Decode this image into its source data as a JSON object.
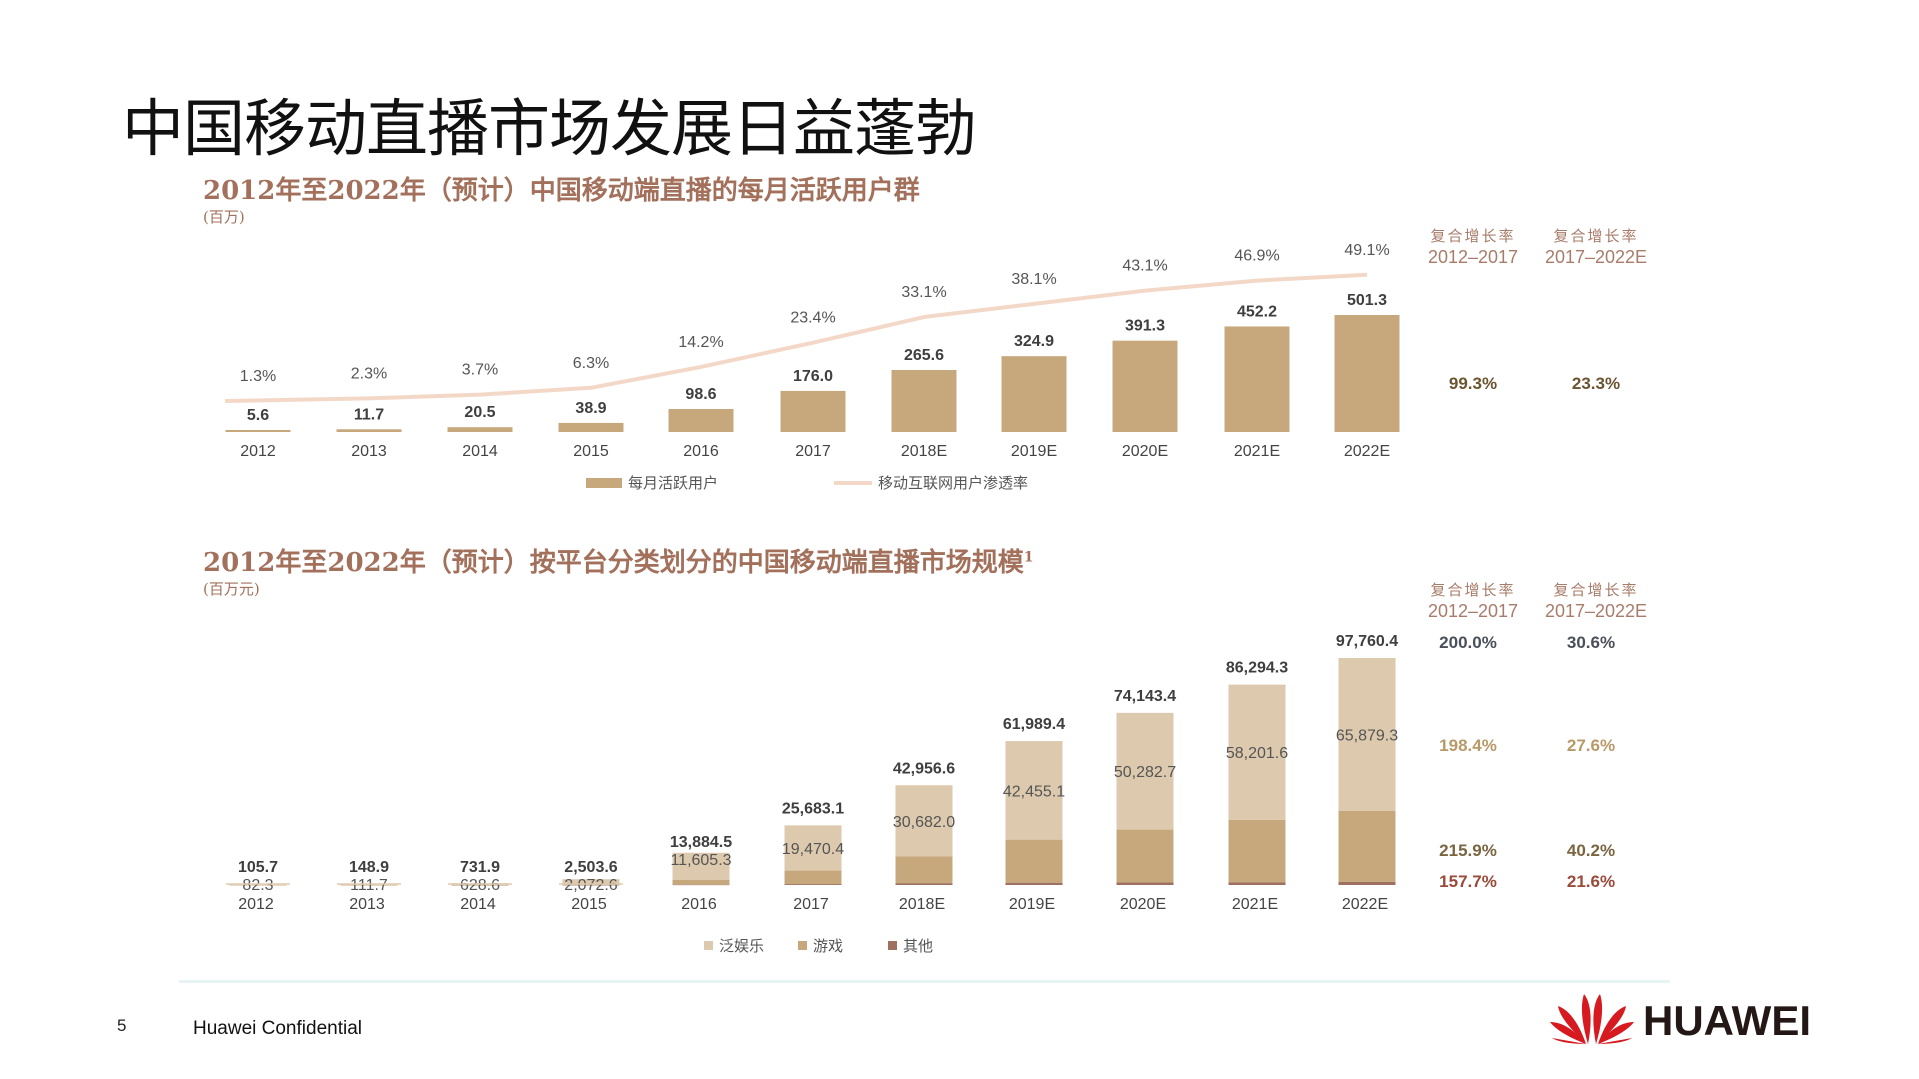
{
  "title": "中国移动直播市场发展日益蓬勃",
  "footer": {
    "page_number": "5",
    "confidential": "Huawei Confidential",
    "logo_text": "HUAWEI"
  },
  "colors": {
    "title": "#a3705c",
    "bar_users": "#c6a87c",
    "penetration_line": "#f3d8c8",
    "entertainment": "#ddc9ad",
    "games": "#c6a87c",
    "other": "#9e7060"
  },
  "chart_data": [
    {
      "type": "bar",
      "title": "2012年至2022年（预计）中国移动端直播的每月活跃用户群",
      "unit": "(百万)",
      "categories": [
        "2012",
        "2013",
        "2014",
        "2015",
        "2016",
        "2017",
        "2018E",
        "2019E",
        "2020E",
        "2021E",
        "2022E"
      ],
      "series": [
        {
          "name": "每月活跃用户",
          "type": "bar",
          "values": [
            5.6,
            11.7,
            20.5,
            38.9,
            98.6,
            176.0,
            265.6,
            324.9,
            391.3,
            452.2,
            501.3
          ],
          "labels": [
            "5.6",
            "11.7",
            "20.5",
            "38.9",
            "98.6",
            "176.0",
            "265.6",
            "324.9",
            "391.3",
            "452.2",
            "501.3"
          ]
        },
        {
          "name": "移动互联网用户渗透率",
          "type": "line",
          "values": [
            1.3,
            2.3,
            3.7,
            6.3,
            14.2,
            23.4,
            33.1,
            38.1,
            43.1,
            46.9,
            49.1
          ],
          "labels": [
            "1.3%",
            "2.3%",
            "3.7%",
            "6.3%",
            "14.2%",
            "23.4%",
            "33.1%",
            "38.1%",
            "43.1%",
            "46.9%",
            "49.1%"
          ]
        }
      ],
      "legend": "bottom",
      "cagr": {
        "headers": [
          {
            "label": "复合增长率",
            "period": "2012–2017"
          },
          {
            "label": "复合增长率",
            "period": "2017–2022E"
          }
        ],
        "rows": [
          {
            "values": [
              "99.3%",
              "23.3%"
            ],
            "color": "#6b5430"
          }
        ]
      }
    },
    {
      "type": "bar",
      "stacked": true,
      "title": "2012年至2022年（预计）按平台分类划分的中国移动端直播市场规模",
      "title_superscript": "1",
      "unit": "(百万元)",
      "categories": [
        "2012",
        "2013",
        "2014",
        "2015",
        "2016",
        "2017",
        "2018E",
        "2019E",
        "2020E",
        "2021E",
        "2022E"
      ],
      "totals": [
        105.7,
        148.9,
        731.9,
        2503.6,
        13884.5,
        25683.1,
        42956.6,
        61989.4,
        74143.4,
        86294.3,
        97760.4
      ],
      "total_labels": [
        "105.7",
        "148.9",
        "731.9",
        "2,503.6",
        "13,884.5",
        "25,683.1",
        "42,956.6",
        "61,989.4",
        "74,143.4",
        "86,294.3",
        "97,760.4"
      ],
      "series": [
        {
          "name": "其他",
          "values": [
            2,
            3,
            10,
            40,
            150,
            400,
            800,
            1000,
            1100,
            1200,
            1400
          ]
        },
        {
          "name": "游戏",
          "values": [
            21.4,
            34.2,
            93.3,
            391,
            2129.2,
            5812.7,
            11474.6,
            18534.3,
            22760.7,
            26892.7,
            30481.1
          ]
        },
        {
          "name": "泛娱乐",
          "values": [
            82.3,
            111.7,
            628.6,
            2072.6,
            11605.3,
            19470.4,
            30682.0,
            42455.1,
            50282.7,
            58201.6,
            65879.3
          ],
          "labels": [
            "82.3",
            "111.7",
            "628.6",
            "2,072.6",
            "11,605.3",
            "19,470.4",
            "30,682.0",
            "42,455.1",
            "50,282.7",
            "58,201.6",
            "65,879.3"
          ]
        }
      ],
      "legend": "bottom",
      "cagr": {
        "headers": [
          {
            "label": "复合增长率",
            "period": "2012–2017"
          },
          {
            "label": "复合增长率",
            "period": "2017–2022E"
          }
        ],
        "rows": [
          {
            "values": [
              "200.0%",
              "30.6%"
            ],
            "color": "#4a4f5a"
          },
          {
            "values": [
              "198.4%",
              "27.6%"
            ],
            "color": "#b89968"
          },
          {
            "values": [
              "215.9%",
              "40.2%"
            ],
            "color": "#7a6540"
          },
          {
            "values": [
              "157.7%",
              "21.6%"
            ],
            "color": "#9a4a3a"
          }
        ]
      }
    }
  ]
}
